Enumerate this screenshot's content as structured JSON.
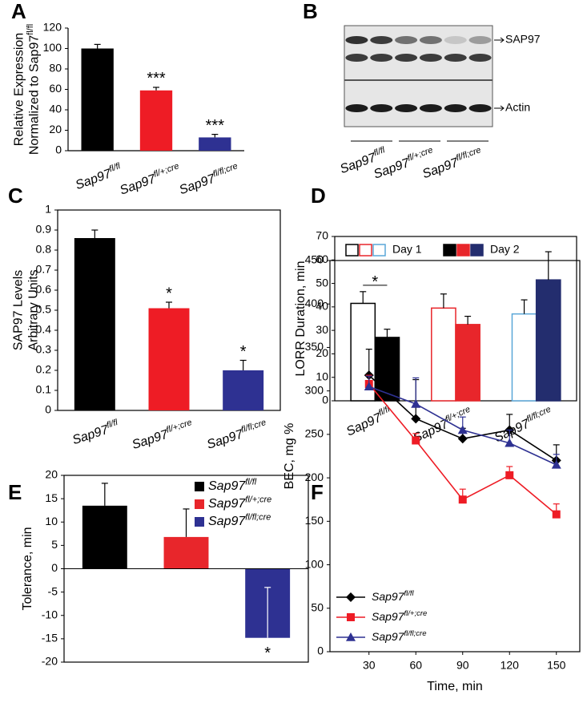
{
  "chart_data": [
    {
      "type": "bar",
      "panel": "A",
      "ylabel": [
        "Relative Expression",
        "Normalized to Sap97fl/fl"
      ],
      "categories": [
        "Sap97fl/fl",
        "Sap97fl/+;cre",
        "Sap97fl/fl;cre"
      ],
      "values": [
        100,
        59,
        13
      ],
      "errors": [
        4,
        3,
        3
      ],
      "colors": [
        "#000000",
        "#ee1c25",
        "#2e3192"
      ],
      "annotations": [
        {
          "category": 1,
          "text": "***"
        },
        {
          "category": 2,
          "text": "***"
        }
      ],
      "ylim": [
        0,
        120
      ],
      "yticks": [
        0,
        20,
        40,
        60,
        80,
        100,
        120
      ]
    },
    {
      "type": "blot",
      "panel": "B",
      "bands": [
        "SAP97",
        "Actin"
      ],
      "categories": [
        "Sap97fl/fl",
        "Sap97fl/+;cre",
        "Sap97fl/fl;cre"
      ]
    },
    {
      "type": "bar",
      "panel": "C",
      "ylabel": [
        "SAP97 Levels",
        "Arbitrary Units"
      ],
      "categories": [
        "Sap97fl/fl",
        "Sap97fl/+;cre",
        "Sap97fl/fl;cre"
      ],
      "values": [
        0.86,
        0.51,
        0.2
      ],
      "errors": [
        0.04,
        0.03,
        0.05
      ],
      "colors": [
        "#000000",
        "#ee1c25",
        "#2e3192"
      ],
      "annotations": [
        {
          "category": 1,
          "text": "*"
        },
        {
          "category": 2,
          "text": "*"
        }
      ],
      "ylim": [
        0,
        1
      ],
      "yticks": [
        0,
        0.1,
        0.2,
        0.3,
        0.4,
        0.5,
        0.6,
        0.7,
        0.8,
        0.9,
        1
      ]
    },
    {
      "type": "grouped_bar",
      "panel": "D",
      "ylabel": [
        "LORR Duration, min"
      ],
      "categories": [
        "Sap97fl/fl",
        "Sap97fl/+;cre",
        "Sap97fl/fl;cre"
      ],
      "series": [
        {
          "name": "Day 1",
          "style": "open",
          "colors": [
            "#000000",
            "#e8262b",
            "#5aa7d8"
          ],
          "values": [
            41.5,
            39.5,
            37
          ],
          "errors": [
            5,
            6,
            6
          ]
        },
        {
          "name": "Day 2",
          "style": "filled",
          "colors": [
            "#000000",
            "#e8262b",
            "#232d6e"
          ],
          "values": [
            27,
            32.5,
            51.5
          ],
          "errors": [
            3.5,
            3.5,
            12
          ]
        }
      ],
      "annotations": [
        {
          "category": 0,
          "text": "*"
        }
      ],
      "ylim": [
        0,
        70
      ],
      "yticks": [
        0,
        10,
        20,
        30,
        40,
        50,
        60,
        70
      ]
    },
    {
      "type": "bar",
      "panel": "E",
      "ylabel": [
        "Tolerance, min"
      ],
      "legend": "upper right",
      "categories": [
        "Sap97fl/fl",
        "Sap97fl/+;cre",
        "Sap97fl/fl;cre"
      ],
      "values": [
        13.5,
        6.8,
        -14.8
      ],
      "errors": [
        4.8,
        6,
        10.8
      ],
      "colors": [
        "#000000",
        "#e8262b",
        "#2e3192"
      ],
      "annotations": [
        {
          "category": 2,
          "text": "*"
        }
      ],
      "ylim": [
        -20,
        20
      ],
      "yticks": [
        -20,
        -15,
        -10,
        -5,
        0,
        5,
        10,
        15,
        20
      ]
    },
    {
      "type": "line",
      "panel": "F",
      "ylabel": [
        "BEC, mg %"
      ],
      "xlabel": "Time, min",
      "legend": "lower left",
      "x": [
        30,
        60,
        90,
        120,
        150
      ],
      "series": [
        {
          "name": "Sap97fl/fl",
          "color": "#000000",
          "marker": "diamond",
          "values": [
            318,
            268,
            245,
            255,
            220
          ],
          "errors": [
            30,
            45,
            12,
            18,
            18
          ]
        },
        {
          "name": "Sap97fl/+;cre",
          "color": "#ee1c25",
          "marker": "square",
          "values": [
            308,
            243,
            175,
            203,
            158
          ],
          "errors": [
            10,
            8,
            12,
            10,
            12
          ]
        },
        {
          "name": "Sap97fl/fl;cre",
          "color": "#2e3192",
          "marker": "triangle",
          "values": [
            305,
            285,
            255,
            240,
            215
          ],
          "errors": [
            12,
            30,
            15,
            15,
            12
          ]
        }
      ],
      "xlim": [
        5,
        165
      ],
      "xticks": [
        30,
        60,
        90,
        120,
        150
      ],
      "ylim": [
        0,
        450
      ],
      "yticks": [
        0,
        50,
        100,
        150,
        200,
        250,
        300,
        350,
        400,
        450
      ]
    }
  ]
}
